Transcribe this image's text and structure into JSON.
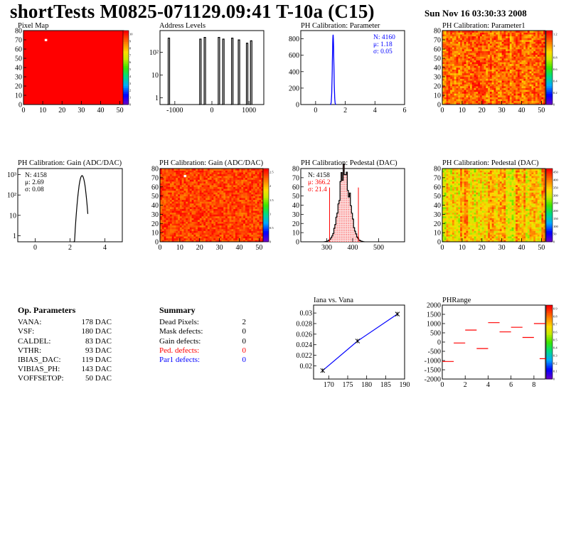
{
  "header": {
    "title": "shortTests M0825-071129.09:41 T-10a (C15)",
    "date": "Sun Nov 16 03:30:33 2008"
  },
  "op_parameters": {
    "title": "Op. Parameters",
    "rows": [
      {
        "key": "VANA:",
        "value": "178 DAC"
      },
      {
        "key": "VSF:",
        "value": "180 DAC"
      },
      {
        "key": "CALDEL:",
        "value": "83 DAC"
      },
      {
        "key": "VTHR:",
        "value": "93 DAC"
      },
      {
        "key": "IBIAS_DAC:",
        "value": "119 DAC"
      },
      {
        "key": "VIBIAS_PH:",
        "value": "143 DAC"
      },
      {
        "key": "VOFFSETOP:",
        "value": "50 DAC"
      }
    ]
  },
  "summary": {
    "title": "Summary",
    "rows": [
      {
        "key": "Dead Pixels:",
        "value": "2",
        "color": "#000000"
      },
      {
        "key": "Mask defects:",
        "value": "0",
        "color": "#000000"
      },
      {
        "key": "Gain defects:",
        "value": "0",
        "color": "#000000"
      },
      {
        "key": "Ped. defects:",
        "value": "0",
        "color": "#ff0000"
      },
      {
        "key": "Par1 defects:",
        "value": "0",
        "color": "#0000ff"
      }
    ]
  },
  "colors": {
    "hist_line": "#000000",
    "fit_blue": "#0000ff",
    "fit_red": "#ff0000",
    "fill_red": "#ff0000"
  },
  "chart_data": [
    {
      "type": "heatmap",
      "title": "Pixel Map",
      "xlim": [
        0,
        52
      ],
      "ylim": [
        0,
        80
      ],
      "xticks": [
        "0",
        "10",
        "20",
        "30",
        "40",
        "50"
      ],
      "yticks": [
        "0",
        "10",
        "20",
        "30",
        "40",
        "50",
        "60",
        "70",
        "80"
      ],
      "zrange": [
        0,
        10
      ],
      "zticks": [
        "0",
        "1",
        "2",
        "3",
        "4",
        "5",
        "6",
        "7",
        "8",
        "9",
        "10"
      ],
      "uniform_value": 10,
      "special_cells": [
        {
          "x": 11,
          "y": 70,
          "value": 0
        }
      ]
    },
    {
      "type": "bar",
      "title": "Address Levels",
      "log_y": true,
      "xlim": [
        -1400,
        1400
      ],
      "ylim": [
        0.5,
        900
      ],
      "xticks": [
        "-1000",
        "0",
        "1000"
      ],
      "yticks": [
        "1",
        "10",
        "10²"
      ],
      "peaks": [
        {
          "x": -1160,
          "value": 420
        },
        {
          "x": -310,
          "value": 380
        },
        {
          "x": -190,
          "value": 450
        },
        {
          "x": 190,
          "value": 450
        },
        {
          "x": 310,
          "value": 380
        },
        {
          "x": 550,
          "value": 420
        },
        {
          "x": 730,
          "value": 350
        },
        {
          "x": 950,
          "value": 250
        },
        {
          "x": 1060,
          "value": 320
        }
      ]
    },
    {
      "type": "histogram",
      "title": "PH Calibration: Parameter",
      "xlim": [
        -1,
        6
      ],
      "ylim": [
        0,
        900
      ],
      "xticks": [
        "0",
        "2",
        "4",
        "6"
      ],
      "yticks": [
        "0",
        "200",
        "400",
        "600",
        "800"
      ],
      "stats": [
        "N: 4160",
        "μ: 1.18",
        "σ: 0.05"
      ],
      "peak": {
        "mean": 1.18,
        "sigma": 0.05,
        "height": 850
      }
    },
    {
      "type": "heatmap",
      "title": "PH Calibration: Parameter1",
      "xlim": [
        0,
        52
      ],
      "ylim": [
        0,
        80
      ],
      "xticks": [
        "0",
        "10",
        "20",
        "30",
        "40",
        "50"
      ],
      "yticks": [
        "0",
        "10",
        "20",
        "30",
        "40",
        "50",
        "60",
        "70",
        "80"
      ],
      "zrange": [
        0,
        1.3
      ],
      "zticks": [
        "0",
        "0.2",
        "0.4",
        "0.6",
        "0.8",
        "1",
        "1.2"
      ],
      "mean_value": 1.1
    },
    {
      "type": "histogram",
      "title": "PH Calibration: Gain (ADC/DAC)",
      "log_y": true,
      "xlim": [
        -1,
        5
      ],
      "ylim": [
        0.5,
        2000
      ],
      "xticks": [
        "0",
        "2",
        "4"
      ],
      "yticks": [
        "1",
        "10",
        "10²",
        "10³"
      ],
      "stats": [
        "N: 4158",
        "μ: 2.69",
        "σ: 0.08"
      ],
      "peak": {
        "mean": 2.69,
        "sigma": 0.08,
        "height": 900
      }
    },
    {
      "type": "heatmap",
      "title": "PH Calibration: Gain (ADC/DAC)",
      "xlim": [
        0,
        52
      ],
      "ylim": [
        0,
        80
      ],
      "xticks": [
        "0",
        "10",
        "20",
        "30",
        "40",
        "50"
      ],
      "yticks": [
        "0",
        "10",
        "20",
        "30",
        "40",
        "50",
        "60",
        "70",
        "80"
      ],
      "zrange": [
        0,
        2.9
      ],
      "zticks": [
        "0",
        "0.5",
        "1",
        "1.5",
        "2",
        "2.5"
      ],
      "mean_value": 2.69,
      "special_cells": [
        {
          "x": 12,
          "y": 72,
          "value": 0
        }
      ]
    },
    {
      "type": "histogram",
      "title": "PH Calibration: Pedestal (DAC)",
      "xlim": [
        200,
        600
      ],
      "ylim": [
        0,
        80
      ],
      "xticks": [
        "300",
        "400",
        "500"
      ],
      "yticks": [
        "0",
        "10",
        "20",
        "30",
        "40",
        "50",
        "60",
        "70",
        "80"
      ],
      "stats": [
        "N: 4158",
        "μ: 366.2",
        "σ: 21.4"
      ],
      "peak": {
        "mean": 366.2,
        "sigma": 21.4,
        "height": 76
      },
      "cut_lines": [
        311,
        422
      ]
    },
    {
      "type": "heatmap",
      "title": "PH Calibration: Pedestal (DAC)",
      "xlim": [
        0,
        52
      ],
      "ylim": [
        0,
        80
      ],
      "xticks": [
        "0",
        "10",
        "20",
        "30",
        "40",
        "50"
      ],
      "yticks": [
        "0",
        "10",
        "20",
        "30",
        "40",
        "50",
        "60",
        "70",
        "80"
      ],
      "zrange": [
        0,
        470
      ],
      "zticks": [
        "0",
        "50",
        "100",
        "150",
        "200",
        "250",
        "300",
        "350",
        "400",
        "450"
      ],
      "mean_value": 366
    },
    {
      "type": "line",
      "title": "Iana vs. Vana",
      "xlim": [
        166,
        190
      ],
      "ylim": [
        0.0175,
        0.0315
      ],
      "xticks": [
        "170",
        "175",
        "180",
        "185",
        "190"
      ],
      "yticks": [
        "0.02",
        "0.022",
        "0.024",
        "0.026",
        "0.028",
        "0.03"
      ],
      "points": [
        {
          "x": 168.4,
          "y": 0.0191
        },
        {
          "x": 177.6,
          "y": 0.0247
        },
        {
          "x": 188.1,
          "y": 0.0298
        }
      ]
    },
    {
      "type": "scatter",
      "title": "PHRange",
      "xlim": [
        0,
        9
      ],
      "ylim": [
        -2000,
        2000
      ],
      "xticks": [
        "0",
        "2",
        "4",
        "6",
        "8"
      ],
      "yticks": [
        "-2000",
        "-1500",
        "-1000",
        "-500",
        "0",
        "500",
        "1000",
        "1500",
        "2000"
      ],
      "zticks": [
        "0",
        "0.1",
        "0.2",
        "0.3",
        "0.4",
        "0.5",
        "0.6",
        "0.7",
        "0.8",
        "0.9"
      ],
      "segments": [
        {
          "x": 0,
          "y": -1050
        },
        {
          "x": 1,
          "y": -50
        },
        {
          "x": 2,
          "y": 650
        },
        {
          "x": 3,
          "y": -350
        },
        {
          "x": 4,
          "y": 1050
        },
        {
          "x": 5,
          "y": 550
        },
        {
          "x": 6,
          "y": 800
        },
        {
          "x": 7,
          "y": 250
        },
        {
          "x": 8,
          "y": 1000
        },
        {
          "x": 8.5,
          "y": -900
        }
      ]
    }
  ]
}
